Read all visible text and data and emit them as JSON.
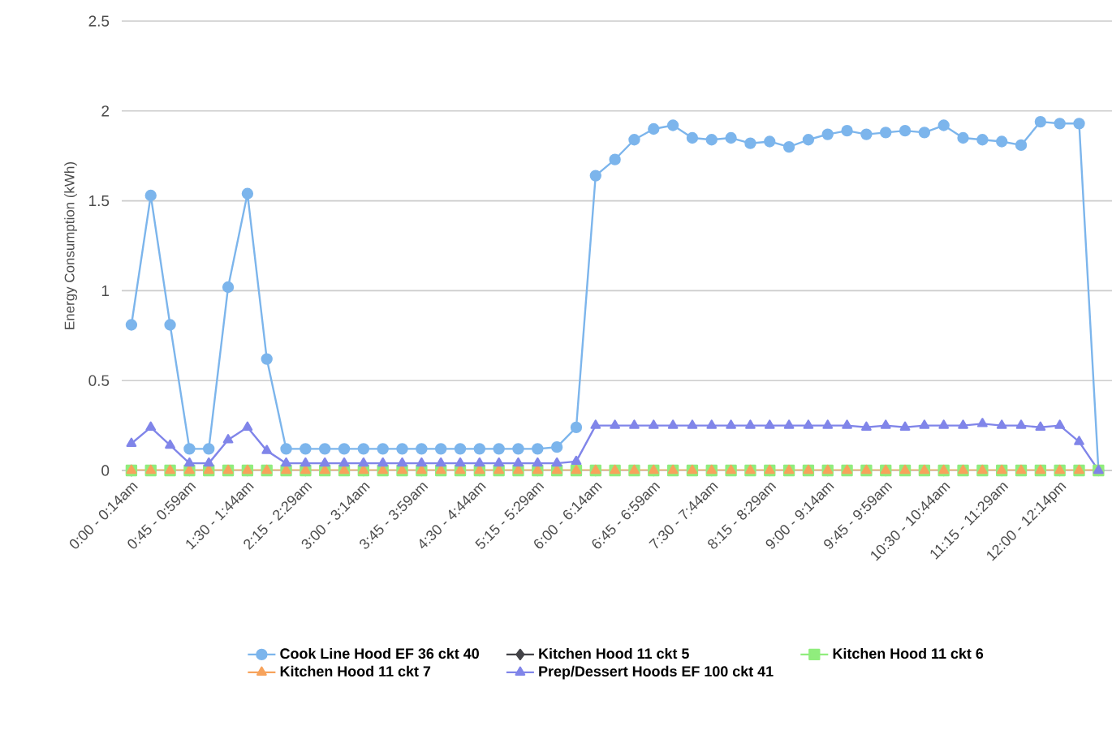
{
  "chart_data": {
    "type": "line",
    "ylabel": "Energy Consumption (kWh)",
    "categories": [
      "0:00 - 0:14am",
      null,
      null,
      "0:45 - 0:59am",
      null,
      null,
      "1:30 - 1:44am",
      null,
      null,
      "2:15 - 2:29am",
      null,
      null,
      "3:00 - 3:14am",
      null,
      null,
      "3:45 - 3:59am",
      null,
      null,
      "4:30 - 4:44am",
      null,
      null,
      "5:15 - 5:29am",
      null,
      null,
      "6:00 - 6:14am",
      null,
      null,
      "6:45 - 6:59am",
      null,
      null,
      "7:30 - 7:44am",
      null,
      null,
      "8:15 - 8:29am",
      null,
      null,
      "9:00 - 9:14am",
      null,
      null,
      "9:45 - 9:59am",
      null,
      null,
      "10:30 - 10:44am",
      null,
      null,
      "11:15 - 11:29am",
      null,
      null,
      "12:00 - 12:14pm",
      null,
      null
    ],
    "series": [
      {
        "name": "Cook Line Hood EF 36 ckt 40",
        "color": "#7cb5ec",
        "marker": "circle",
        "values": [
          0.81,
          1.53,
          0.81,
          0.12,
          0.12,
          1.02,
          1.54,
          0.62,
          0.12,
          0.12,
          0.12,
          0.12,
          0.12,
          0.12,
          0.12,
          0.12,
          0.12,
          0.12,
          0.12,
          0.12,
          0.12,
          0.12,
          0.13,
          0.24,
          1.64,
          1.73,
          1.84,
          1.9,
          1.92,
          1.85,
          1.84,
          1.85,
          1.82,
          1.83,
          1.8,
          1.84,
          1.87,
          1.89,
          1.87,
          1.88,
          1.89,
          1.88,
          1.92,
          1.85,
          1.84,
          1.83,
          1.81,
          1.94,
          1.93,
          1.93,
          0
        ]
      },
      {
        "name": "Kitchen Hood 11 ckt 5",
        "color": "#434348",
        "marker": "diamond",
        "values": [
          null,
          null,
          null,
          null,
          null,
          null,
          null,
          null,
          null,
          null,
          null,
          null,
          null,
          null,
          null,
          null,
          null,
          null,
          null,
          null,
          null,
          null,
          null,
          null,
          null,
          null,
          null,
          null,
          null,
          null,
          null,
          null,
          null,
          null,
          null,
          null,
          null,
          null,
          null,
          null,
          null,
          null,
          null,
          null,
          null,
          null,
          null,
          null,
          null,
          null,
          null
        ]
      },
      {
        "name": "Kitchen Hood 11 ckt 6",
        "color": "#90ed7d",
        "marker": "square",
        "values": [
          0,
          0,
          0,
          0,
          0,
          0,
          0,
          0,
          0,
          0,
          0,
          0,
          0,
          0,
          0,
          0,
          0,
          0,
          0,
          0,
          0,
          0,
          0,
          0,
          0,
          0,
          0,
          0,
          0,
          0,
          0,
          0,
          0,
          0,
          0,
          0,
          0,
          0,
          0,
          0,
          0,
          0,
          0,
          0,
          0,
          0,
          0,
          0,
          0,
          0,
          0
        ]
      },
      {
        "name": "Kitchen Hood 11 ckt 7",
        "color": "#f7a35c",
        "marker": "triangle",
        "values": [
          0,
          0,
          0,
          0,
          0,
          0,
          0,
          0,
          0,
          0,
          0,
          0,
          0,
          0,
          0,
          0,
          0,
          0,
          0,
          0,
          0,
          0,
          0,
          0,
          0,
          0,
          0,
          0,
          0,
          0,
          0,
          0,
          0,
          0,
          0,
          0,
          0,
          0,
          0,
          0,
          0,
          0,
          0,
          0,
          0,
          0,
          0,
          0,
          0,
          0,
          0
        ]
      },
      {
        "name": "Prep/Dessert Hoods EF 100 ckt 41",
        "color": "#8085e9",
        "marker": "triangle",
        "values": [
          0.15,
          0.24,
          0.14,
          0.04,
          0.04,
          0.17,
          0.24,
          0.11,
          0.04,
          0.04,
          0.04,
          0.04,
          0.04,
          0.04,
          0.04,
          0.04,
          0.04,
          0.04,
          0.04,
          0.04,
          0.04,
          0.04,
          0.04,
          0.05,
          0.25,
          0.25,
          0.25,
          0.25,
          0.25,
          0.25,
          0.25,
          0.25,
          0.25,
          0.25,
          0.25,
          0.25,
          0.25,
          0.25,
          0.24,
          0.25,
          0.24,
          0.25,
          0.25,
          0.25,
          0.26,
          0.25,
          0.25,
          0.24,
          0.25,
          0.16,
          0
        ]
      }
    ],
    "ylim": [
      0,
      2.5
    ],
    "yticks": [
      0,
      0.5,
      1,
      1.5,
      2,
      2.5
    ],
    "grid": "y",
    "legend": "bottom"
  }
}
